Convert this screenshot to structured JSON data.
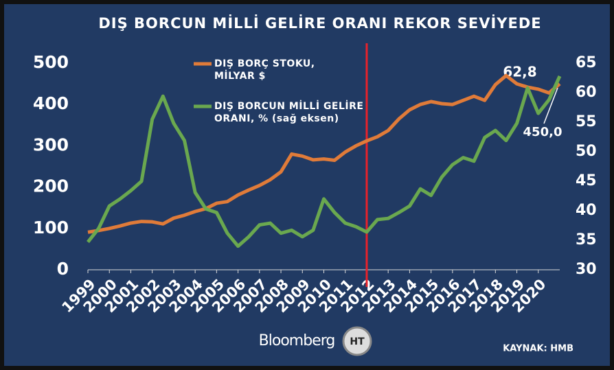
{
  "chart_data": {
    "type": "line",
    "title": "DIŞ BORCUN MİLLİ GELİRE ORANI REKOR SEVİYEDE",
    "x": [
      1999,
      1999.5,
      2000,
      2000.5,
      2001,
      2001.5,
      2002,
      2002.5,
      2003,
      2003.5,
      2004,
      2004.5,
      2005,
      2005.5,
      2006,
      2006.5,
      2007,
      2007.5,
      2008,
      2008.5,
      2009,
      2009.5,
      2010,
      2010.5,
      2011,
      2011.5,
      2012,
      2012.5,
      2013,
      2013.5,
      2014,
      2014.5,
      2015,
      2015.5,
      2016,
      2016.5,
      2017,
      2017.5,
      2018,
      2018.5,
      2019,
      2019.5,
      2020,
      2020.5,
      2021
    ],
    "xlim": [
      1999,
      2021
    ],
    "xticks": [
      1999,
      2000,
      2001,
      2002,
      2003,
      2004,
      2005,
      2006,
      2007,
      2008,
      2009,
      2010,
      2011,
      2012,
      2013,
      2014,
      2015,
      2016,
      2017,
      2018,
      2019,
      2020
    ],
    "ylim": [
      0,
      500
    ],
    "yticks": [
      0,
      100,
      200,
      300,
      400,
      500
    ],
    "y2lim": [
      30,
      65
    ],
    "y2ticks": [
      30,
      35,
      40,
      45,
      50,
      55,
      60,
      65
    ],
    "series": [
      {
        "name": "DIŞ BORÇ STOKU, MİLYAR $",
        "color": "#e07b39",
        "values": [
          91,
          95,
          100,
          106,
          113,
          117,
          116,
          111,
          125,
          132,
          141,
          148,
          161,
          165,
          181,
          193,
          204,
          218,
          237,
          280,
          275,
          266,
          268,
          265,
          285,
          300,
          312,
          322,
          337,
          365,
          387,
          400,
          407,
          402,
          400,
          410,
          420,
          410,
          448,
          470,
          450,
          442,
          437,
          428,
          450
        ]
      },
      {
        "name": "DIŞ BORCUN MİLLİ GELİRE ORANI, % (sağ eksen)",
        "color": "#6aa84f",
        "axis": "y2",
        "values": [
          34.7,
          37,
          40.8,
          42,
          43.4,
          45,
          55.5,
          59.4,
          54.8,
          51.9,
          43.1,
          40.3,
          39.7,
          36.2,
          34,
          35.6,
          37.6,
          37.9,
          36.2,
          36.7,
          35.6,
          36.7,
          42,
          39.7,
          37.9,
          37.3,
          36.4,
          38.5,
          38.7,
          39.7,
          40.8,
          43.7,
          42.6,
          45.7,
          47.8,
          49,
          48.4,
          52.4,
          53.6,
          51.9,
          54.8,
          60.8,
          56.5,
          58.8,
          62.8
        ]
      }
    ],
    "annotations": [
      "62,8",
      "450,0"
    ],
    "vline_x": 2012,
    "vline_color": "#e8222a",
    "logo": "Bloomberg",
    "logo_badge": "HT",
    "source": "KAYNAK: HMB"
  }
}
